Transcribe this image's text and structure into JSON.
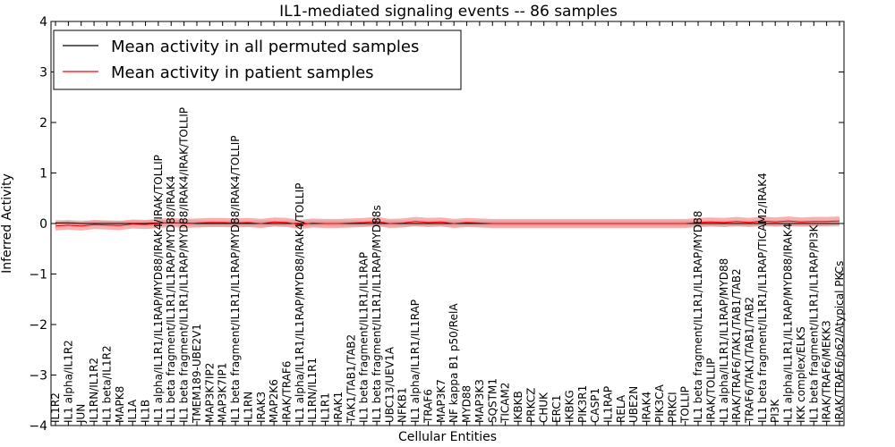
{
  "chart_data": {
    "type": "line",
    "title": "IL1-mediated signaling events -- 86 samples",
    "xlabel": "Cellular Entities",
    "ylabel": "Inferred Activity",
    "ylim": [
      -4,
      4
    ],
    "yticks": [
      -4,
      -3,
      -2,
      -1,
      0,
      1,
      2,
      3,
      4
    ],
    "ytick_labels": [
      "−4",
      "−3",
      "−2",
      "−1",
      "0",
      "1",
      "2",
      "3",
      "4"
    ],
    "legend": {
      "placement": "top-left",
      "entries": [
        {
          "label": "Mean activity in all permuted samples",
          "color": "#000000"
        },
        {
          "label": "Mean activity in patient samples",
          "color": "#ff0000"
        }
      ]
    },
    "colors": {
      "permuted_line": "#000000",
      "patient_line": "#ff0000",
      "patient_band": "#f47c7c",
      "permuted_band": "#c8c8c8"
    },
    "categories": [
      "IL1R2",
      "IL1 alpha/IL1R2",
      "JUN",
      "IL1RN/IL1R2",
      "IL1 beta/IL1R2",
      "MAPK8",
      "IL1A",
      "IL1B",
      "IL1 alpha/IL1R1/IL1RAP/MYD88/IRAK4/IRAK/TOLLIP",
      "IL1 beta fragment/IL1R1/IL1RAP/MYD88/IRAK4",
      "IL1 beta fragment/IL1R1/IL1RAP/MYD88/IRAK4/IRAK/TOLLIP",
      "TMEM189-UBE2V1",
      "MAP3K7IP2",
      "MAP3K7IP1",
      "IL1 beta fragment/IL1R1/IL1RAP/MYD88/IRAK4/TOLLIP",
      "IL1RN",
      "IRAK3",
      "MAP2K6",
      "IRAK/TRAF6",
      "IL1 alpha/IL1R1/IL1RAP/MYD88/IRAK4/TOLLIP",
      "IL1RN/IL1R1",
      "IL1R1",
      "IRAK1",
      "TAK1/TAB1/TAB2",
      "IL1 beta fragment/IL1R1/IL1RAP",
      "IL1 beta fragment/IL1R1/IL1RAP/MYD88s",
      "UBC13/UEV1A",
      "NFKB1",
      "IL1 alpha/IL1R1/IL1RAP",
      "TRAF6",
      "MAP3K7",
      "NF kappa B1 p50/RelA",
      "MYD88",
      "MAP3K3",
      "SQSTM1",
      "TICAM2",
      "IKBKB",
      "PRKCZ",
      "CHUK",
      "ERC1",
      "IKBKG",
      "PIK3R1",
      "CASP1",
      "IL1RAP",
      "RELA",
      "UBE2N",
      "IRAK4",
      "PIK3CA",
      "PRKCI",
      "TOLLIP",
      "IL1 beta fragment/IL1R1/IL1RAP/MYD88",
      "IRAK/TOLLIP",
      "IL1 alpha/IL1R1/IL1RAP/MYD88",
      "IRAK/TRAF6/TAK1/TAB1/TAB2",
      "TRAF6/TAK1/TAB1/TAB2",
      "IL1 beta fragment/IL1R1/IL1RAP/TICAM2/IRAK4",
      "PI3K",
      "IL1 alpha/IL1R1/IL1RAP/MYD88/IRAK4",
      "IKK complex/ELKS",
      "IL1 beta fragment/IL1R1/IL1RAP/PI3K",
      "IRAK/TRAF6/MEKK3",
      "IRAK/TRAF6/p62/Atypical PKCs"
    ],
    "series": [
      {
        "name": "Mean activity in all permuted samples",
        "values": [
          0.01,
          0.01,
          0.0,
          0.0,
          0.0,
          0.0,
          0.0,
          0.0,
          0.01,
          0.01,
          0.01,
          0.0,
          0.0,
          0.0,
          0.0,
          0.0,
          0.0,
          0.0,
          0.0,
          0.0,
          0.0,
          0.0,
          0.0,
          0.0,
          0.0,
          0.0,
          0.0,
          0.0,
          0.0,
          0.0,
          0.0,
          0.0,
          0.0,
          0.0,
          0.0,
          0.0,
          0.0,
          0.0,
          0.0,
          0.0,
          0.0,
          0.0,
          0.0,
          0.0,
          0.0,
          0.0,
          0.0,
          0.0,
          0.0,
          0.0,
          0.0,
          0.0,
          0.0,
          0.0,
          0.0,
          0.0,
          0.0,
          0.0,
          0.0,
          0.0,
          0.0,
          0.0
        ],
        "band": 0.06
      },
      {
        "name": "Mean activity in patient samples",
        "values": [
          -0.05,
          -0.03,
          -0.05,
          -0.02,
          -0.03,
          -0.04,
          -0.01,
          -0.02,
          0.0,
          0.02,
          0.0,
          0.01,
          0.02,
          0.02,
          0.01,
          0.02,
          0.0,
          0.03,
          0.02,
          -0.02,
          0.01,
          0.0,
          0.0,
          0.01,
          0.02,
          0.04,
          0.0,
          0.01,
          0.04,
          0.02,
          0.03,
          0.0,
          0.02,
          0.01,
          0.0,
          0.0,
          0.0,
          0.0,
          0.0,
          0.0,
          0.0,
          0.0,
          0.0,
          0.0,
          0.0,
          0.0,
          0.0,
          0.0,
          0.0,
          0.0,
          0.02,
          0.03,
          0.02,
          0.04,
          0.02,
          0.05,
          0.03,
          0.05,
          0.03,
          0.04,
          0.04,
          0.05
        ],
        "band": 0.09
      }
    ]
  }
}
